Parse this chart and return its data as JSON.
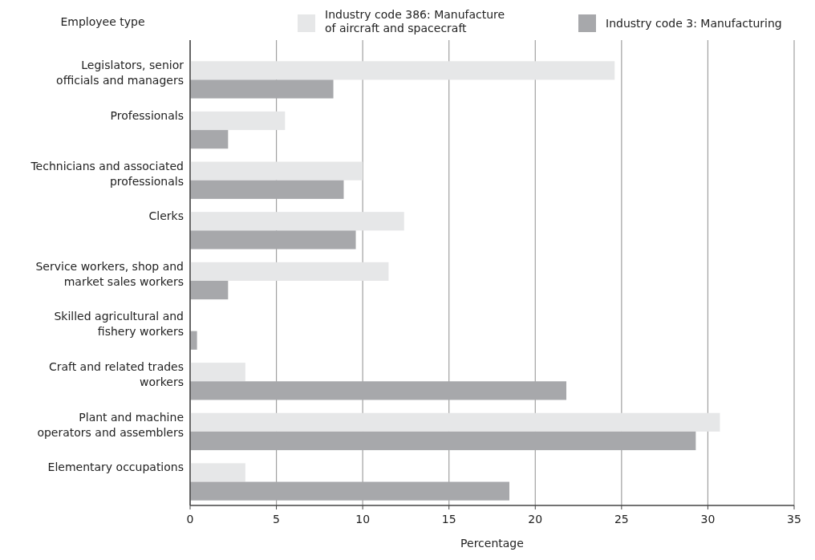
{
  "chart_data": {
    "type": "bar",
    "orientation": "horizontal",
    "ylabel": "Employee type",
    "xlabel": "Percentage",
    "categories": [
      "Legislators, senior officials and managers",
      "Professionals",
      "Technicians and associated professionals",
      "Clerks",
      "Service workers, shop and market sales workers",
      "Skilled agricultural and fishery workers",
      "Craft and related trades workers",
      "Plant and machine operators and assemblers",
      "Elementary occupations"
    ],
    "series": [
      {
        "name": "Industry code 386: Manufacture of aircraft and spacecraft",
        "color": "#e6e7e8",
        "values": [
          24.6,
          5.5,
          10.0,
          12.4,
          11.5,
          0,
          3.2,
          30.7,
          3.2
        ]
      },
      {
        "name": "Industry code 3: Manufacturing",
        "color": "#a7a8ab",
        "values": [
          8.3,
          2.2,
          8.9,
          9.6,
          2.2,
          0.4,
          21.8,
          29.3,
          18.5
        ]
      }
    ],
    "xlim": [
      0,
      35
    ],
    "xticks": [
      0,
      5,
      10,
      15,
      20,
      25,
      30,
      35
    ],
    "grid": "x",
    "legend": "top"
  }
}
